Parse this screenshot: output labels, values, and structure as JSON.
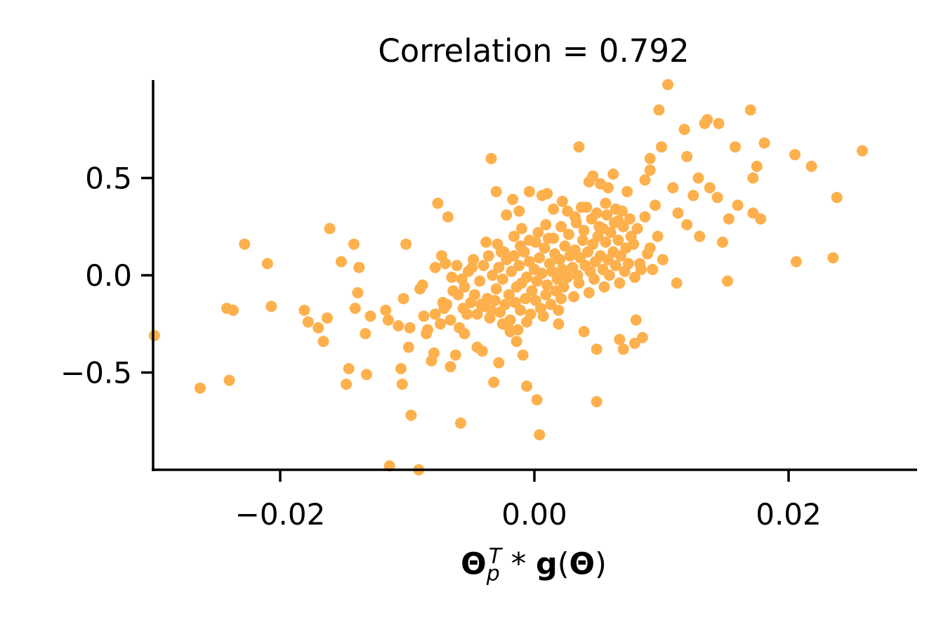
{
  "chart_data": {
    "type": "scatter",
    "title": "Correlation = 0.792",
    "xlabel": "Θ_p^T * g(Θ)",
    "xlabel_parts": {
      "theta": "Θ",
      "sub": "p",
      "sup": "T",
      "op": " * ",
      "g": "g",
      "lparen": "(",
      "theta2": "Θ",
      "rparen": ")"
    },
    "ylabel": "",
    "xlim": [
      -0.03,
      0.03
    ],
    "ylim": [
      -1.0,
      1.0
    ],
    "xticks": [
      -0.02,
      0.0,
      0.02
    ],
    "xtick_labels": [
      "−0.02",
      "0.00",
      "0.02"
    ],
    "yticks": [
      -0.5,
      0.0,
      0.5
    ],
    "ytick_labels": [
      "−0.5",
      "0.0",
      "0.5"
    ],
    "color": "#fdb04c",
    "series": [
      {
        "name": "points",
        "points": [
          [
            -0.0299,
            -0.31
          ],
          [
            -0.0263,
            -0.58
          ],
          [
            -0.0242,
            -0.17
          ],
          [
            -0.0237,
            -0.18
          ],
          [
            -0.024,
            -0.54
          ],
          [
            -0.0228,
            0.16
          ],
          [
            -0.021,
            0.06
          ],
          [
            -0.0207,
            -0.16
          ],
          [
            -0.0181,
            -0.18
          ],
          [
            -0.0178,
            -0.24
          ],
          [
            -0.017,
            -0.27
          ],
          [
            -0.0166,
            -0.34
          ],
          [
            -0.0163,
            -0.22
          ],
          [
            -0.0161,
            0.24
          ],
          [
            -0.0152,
            0.07
          ],
          [
            -0.0148,
            -0.56
          ],
          [
            -0.0146,
            -0.48
          ],
          [
            -0.0142,
            0.16
          ],
          [
            -0.0141,
            -0.17
          ],
          [
            -0.0139,
            -0.09
          ],
          [
            -0.0138,
            0.04
          ],
          [
            -0.0133,
            -0.3
          ],
          [
            -0.0132,
            -0.51
          ],
          [
            -0.0129,
            -0.21
          ],
          [
            -0.0117,
            -0.18
          ],
          [
            -0.0115,
            -0.23
          ],
          [
            -0.0107,
            -0.26
          ],
          [
            -0.0105,
            -0.48
          ],
          [
            -0.0104,
            -0.56
          ],
          [
            -0.0103,
            -0.12
          ],
          [
            -0.0101,
            0.16
          ],
          [
            -0.0099,
            -0.37
          ],
          [
            -0.0098,
            -0.27
          ],
          [
            -0.0097,
            -0.72
          ],
          [
            -0.009,
            -0.07
          ],
          [
            -0.0087,
            -0.21
          ],
          [
            -0.0084,
            -0.28
          ],
          [
            -0.0081,
            -0.44
          ],
          [
            -0.0079,
            -0.4
          ],
          [
            -0.0076,
            0.37
          ],
          [
            -0.0073,
            0.1
          ],
          [
            -0.0071,
            -0.17
          ],
          [
            -0.0068,
            0.3
          ],
          [
            -0.0066,
            -0.47
          ],
          [
            -0.0062,
            -0.41
          ],
          [
            -0.0058,
            -0.76
          ],
          [
            -0.0055,
            -0.3
          ],
          [
            -0.0053,
            -0.2
          ],
          [
            -0.0049,
            0.04
          ],
          [
            -0.0045,
            -0.37
          ],
          [
            -0.0041,
            -0.39
          ],
          [
            -0.0038,
            0.17
          ],
          [
            -0.0034,
            0.6
          ],
          [
            -0.0032,
            -0.55
          ],
          [
            -0.003,
            0.43
          ],
          [
            -0.0028,
            -0.45
          ],
          [
            -0.0026,
            0.12
          ],
          [
            -0.0025,
            -0.25
          ],
          [
            -0.0022,
            0.31
          ],
          [
            -0.0019,
            -0.29
          ],
          [
            -0.0017,
            0.39
          ],
          [
            -0.0014,
            -0.34
          ],
          [
            -0.0012,
            0.33
          ],
          [
            -0.0009,
            -0.41
          ],
          [
            -0.0006,
            -0.57
          ],
          [
            -0.0004,
            0.43
          ],
          [
            0.0002,
            -0.64
          ],
          [
            0.0004,
            -0.82
          ],
          [
            0.0006,
            0.41
          ],
          [
            0.001,
            0.42
          ],
          [
            0.0015,
            0.34
          ],
          [
            0.0019,
            -0.25
          ],
          [
            0.0022,
            0.38
          ],
          [
            0.0035,
            0.66
          ],
          [
            0.0037,
            0.35
          ],
          [
            0.0039,
            -0.29
          ],
          [
            0.0043,
            0.48
          ],
          [
            0.0046,
            0.51
          ],
          [
            0.0049,
            -0.38
          ],
          [
            0.0049,
            -0.65
          ],
          [
            0.0052,
            0.47
          ],
          [
            0.0058,
            0.45
          ],
          [
            0.0062,
            0.52
          ],
          [
            0.0067,
            -0.33
          ],
          [
            0.007,
            -0.38
          ],
          [
            0.0073,
            0.43
          ],
          [
            0.0079,
            -0.35
          ],
          [
            0.008,
            -0.23
          ],
          [
            0.0085,
            -0.32
          ],
          [
            0.0087,
            0.49
          ],
          [
            0.0091,
            0.54
          ],
          [
            0.0095,
            0.36
          ],
          [
            0.0098,
            0.85
          ],
          [
            0.01,
            0.66
          ],
          [
            0.0105,
            0.98
          ],
          [
            0.0109,
            0.45
          ],
          [
            0.0112,
            -0.04
          ],
          [
            0.0118,
            0.75
          ],
          [
            0.012,
            0.26
          ],
          [
            0.0125,
            0.41
          ],
          [
            0.0129,
            0.5
          ],
          [
            0.0134,
            0.78
          ],
          [
            0.0136,
            0.8
          ],
          [
            0.0138,
            0.45
          ],
          [
            0.0145,
            0.78
          ],
          [
            0.0148,
            0.17
          ],
          [
            0.0153,
            0.29
          ],
          [
            0.0158,
            0.66
          ],
          [
            0.016,
            0.36
          ],
          [
            0.0172,
            0.5
          ],
          [
            0.0172,
            0.32
          ],
          [
            0.0175,
            0.56
          ],
          [
            0.0178,
            0.29
          ],
          [
            0.0181,
            0.68
          ],
          [
            0.0205,
            0.62
          ],
          [
            0.0206,
            0.07
          ],
          [
            0.0218,
            0.56
          ],
          [
            0.0235,
            0.09
          ],
          [
            0.0238,
            0.4
          ],
          [
            0.0258,
            0.64
          ],
          [
            -0.0114,
            -0.98
          ],
          [
            -0.0091,
            -1.0
          ],
          [
            0.017,
            0.85
          ],
          [
            0.0144,
            0.4
          ],
          [
            0.012,
            0.61
          ],
          [
            0.0091,
            0.6
          ],
          [
            0.0113,
            0.32
          ],
          [
            0.013,
            0.2
          ],
          [
            0.0152,
            -0.03
          ],
          [
            0.0101,
            0.08
          ],
          [
            0.0097,
            0.2
          ],
          [
            0.0093,
            0.03
          ],
          [
            -0.0085,
            -0.3
          ],
          [
            -0.0078,
            0.04
          ],
          [
            -0.007,
            0.06
          ],
          [
            -0.0064,
            -0.08
          ],
          [
            -0.0061,
            0.05
          ],
          [
            -0.0053,
            -0.2
          ],
          [
            -0.0029,
            0.16
          ],
          [
            -0.0034,
            -0.18
          ],
          [
            -0.0042,
            -0.15
          ],
          [
            -0.0065,
            -0.01
          ],
          [
            -0.0072,
            -0.14
          ],
          [
            -0.0088,
            -0.05
          ],
          [
            -0.0055,
            -0.06
          ],
          [
            -0.0052,
            0.02
          ],
          [
            -0.0047,
            -0.1
          ],
          [
            -0.0043,
            -0.03
          ],
          [
            -0.004,
            0.05
          ],
          [
            -0.0037,
            -0.12
          ],
          [
            -0.0033,
            0.0
          ],
          [
            -0.003,
            -0.07
          ],
          [
            -0.0028,
            0.04
          ],
          [
            -0.0025,
            -0.02
          ],
          [
            -0.0022,
            0.08
          ],
          [
            -0.002,
            -0.1
          ],
          [
            -0.0018,
            0.02
          ],
          [
            -0.0016,
            0.1
          ],
          [
            -0.0014,
            -0.06
          ],
          [
            -0.0012,
            0.05
          ],
          [
            -0.001,
            -0.04
          ],
          [
            -0.0008,
            0.12
          ],
          [
            -0.0006,
            -0.01
          ],
          [
            -0.0004,
            0.07
          ],
          [
            -0.0002,
            -0.08
          ],
          [
            0.0,
            0.03
          ],
          [
            0.0002,
            -0.03
          ],
          [
            0.0004,
            0.09
          ],
          [
            0.0006,
            0.01
          ],
          [
            0.0008,
            0.14
          ],
          [
            0.001,
            -0.05
          ],
          [
            0.0012,
            0.06
          ],
          [
            0.0014,
            0.02
          ],
          [
            0.0016,
            0.11
          ],
          [
            0.0018,
            -0.02
          ],
          [
            0.002,
            0.08
          ],
          [
            0.0022,
            0.03
          ],
          [
            0.0024,
            0.15
          ],
          [
            0.0026,
            -0.01
          ],
          [
            0.0028,
            0.1
          ],
          [
            0.003,
            0.04
          ],
          [
            0.0032,
            0.13
          ],
          [
            0.0034,
            0.0
          ],
          [
            0.0036,
            0.09
          ],
          [
            0.0038,
            0.18
          ],
          [
            0.004,
            0.05
          ],
          [
            0.0042,
            0.12
          ],
          [
            0.0044,
            0.02
          ],
          [
            0.0046,
            0.16
          ],
          [
            0.0048,
            0.07
          ],
          [
            0.005,
            0.2
          ],
          [
            0.0052,
            0.1
          ],
          [
            0.0054,
            0.03
          ],
          [
            0.0056,
            0.17
          ],
          [
            0.0058,
            0.08
          ],
          [
            0.006,
            0.22
          ],
          [
            0.0062,
            0.12
          ],
          [
            0.0064,
            0.05
          ],
          [
            0.0066,
            0.18
          ],
          [
            0.0068,
            0.1
          ],
          [
            0.007,
            0.25
          ],
          [
            0.0072,
            0.14
          ],
          [
            0.0074,
            0.06
          ],
          [
            0.0076,
            0.2
          ],
          [
            -0.005,
            -0.14
          ],
          [
            -0.0045,
            -0.2
          ],
          [
            -0.0039,
            -0.16
          ],
          [
            -0.0035,
            -0.22
          ],
          [
            -0.0031,
            -0.13
          ],
          [
            -0.0027,
            -0.19
          ],
          [
            -0.0023,
            -0.15
          ],
          [
            -0.0019,
            -0.23
          ],
          [
            -0.0015,
            -0.14
          ],
          [
            -0.0011,
            -0.18
          ],
          [
            -0.0007,
            -0.12
          ],
          [
            -0.0003,
            -0.2
          ],
          [
            0.0001,
            -0.13
          ],
          [
            0.0005,
            -0.17
          ],
          [
            0.0009,
            -0.1
          ],
          [
            0.0013,
            -0.15
          ],
          [
            0.0017,
            -0.08
          ],
          [
            0.0021,
            -0.12
          ],
          [
            -0.0016,
            0.2
          ],
          [
            -0.001,
            0.24
          ],
          [
            -0.0004,
            0.18
          ],
          [
            0.0003,
            0.22
          ],
          [
            0.0009,
            0.26
          ],
          [
            0.0015,
            0.19
          ],
          [
            0.0021,
            0.25
          ],
          [
            0.0027,
            0.21
          ],
          [
            0.0033,
            0.27
          ],
          [
            0.0039,
            0.23
          ],
          [
            0.0045,
            0.29
          ],
          [
            0.0051,
            0.25
          ],
          [
            0.0057,
            0.31
          ],
          [
            0.0063,
            0.27
          ],
          [
            0.0069,
            0.33
          ],
          [
            0.0075,
            0.29
          ],
          [
            0.0081,
            0.24
          ],
          [
            0.0087,
            0.3
          ],
          [
            -0.006,
            -0.1
          ],
          [
            -0.0057,
            -0.02
          ],
          [
            -0.0048,
            0.08
          ],
          [
            -0.0036,
            0.1
          ],
          [
            -0.0024,
            0.12
          ],
          [
            -0.0011,
            0.15
          ],
          [
            0.0001,
            0.17
          ],
          [
            0.0011,
            0.19
          ],
          [
            0.0023,
            -0.06
          ],
          [
            0.0035,
            -0.04
          ],
          [
            0.0047,
            -0.02
          ],
          [
            0.0059,
            0.0
          ],
          [
            0.0071,
            0.02
          ],
          [
            0.0083,
            0.06
          ],
          [
            0.0089,
            0.11
          ],
          [
            0.0078,
            0.16
          ],
          [
            0.0066,
            0.28
          ],
          [
            0.0054,
            0.24
          ],
          [
            -0.0021,
            -0.26
          ],
          [
            -0.0013,
            -0.28
          ],
          [
            -0.0006,
            -0.24
          ],
          [
            0.0007,
            -0.21
          ],
          [
            0.0019,
            -0.18
          ],
          [
            0.0031,
            -0.11
          ],
          [
            0.0043,
            -0.09
          ],
          [
            0.0055,
            -0.06
          ],
          [
            0.0067,
            -0.04
          ],
          [
            0.0079,
            -0.01
          ],
          [
            0.0084,
            0.03
          ],
          [
            0.0091,
            0.14
          ],
          [
            -0.0078,
            -0.2
          ],
          [
            -0.0074,
            -0.25
          ],
          [
            -0.0069,
            -0.15
          ],
          [
            -0.0066,
            -0.23
          ],
          [
            -0.0059,
            -0.27
          ],
          [
            -0.0056,
            -0.17
          ],
          [
            0.0026,
            0.33
          ],
          [
            0.0032,
            0.3
          ],
          [
            0.0041,
            0.35
          ],
          [
            0.0049,
            0.32
          ],
          [
            0.0056,
            0.37
          ],
          [
            0.0064,
            0.34
          ]
        ]
      }
    ]
  }
}
